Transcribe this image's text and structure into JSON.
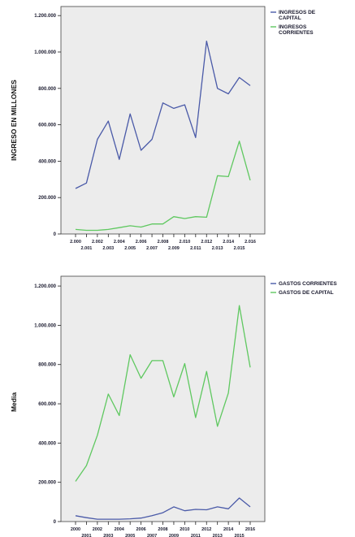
{
  "chart_data": [
    {
      "type": "line",
      "title": "",
      "xlabel": "",
      "ylabel": "INGRESO EN MILLONES",
      "ylim": [
        0,
        1250000
      ],
      "yticks": [
        "0",
        "200.000",
        "400.000",
        "600.000",
        "800.000",
        "1.000.000",
        "1.200.000"
      ],
      "x": [
        2000,
        2001,
        2002,
        2003,
        2004,
        2005,
        2006,
        2007,
        2008,
        2009,
        2010,
        2011,
        2012,
        2013,
        2014,
        2015,
        2016
      ],
      "xticks": [
        "2.000",
        "2.001",
        "2.002",
        "2.003",
        "2.004",
        "2.005",
        "2.006",
        "2.007",
        "2.008",
        "2.009",
        "2.010",
        "2.011",
        "2.012",
        "2.013",
        "2.014",
        "2.015",
        "2.016"
      ],
      "legend_position": "outside-top-right",
      "series": [
        {
          "name_lines": [
            "INGRESOS DE",
            "CAPITAL"
          ],
          "color": "#4a5aa8",
          "values": [
            250000,
            280000,
            520000,
            620000,
            410000,
            660000,
            460000,
            520000,
            720000,
            690000,
            710000,
            530000,
            1060000,
            800000,
            770000,
            860000,
            815000
          ]
        },
        {
          "name_lines": [
            "INGRESOS",
            "CORRIENTES"
          ],
          "color": "#5fc860",
          "values": [
            25000,
            20000,
            20000,
            25000,
            35000,
            45000,
            38000,
            55000,
            55000,
            95000,
            85000,
            95000,
            92000,
            320000,
            315000,
            510000,
            295000
          ]
        }
      ]
    },
    {
      "type": "line",
      "title": "",
      "xlabel": "",
      "ylabel": "Media",
      "ylim": [
        0,
        1250000
      ],
      "yticks": [
        "0",
        "200.000",
        "400.000",
        "600.000",
        "800.000",
        "1.000.000",
        "1.200.000"
      ],
      "x": [
        2000,
        2001,
        2002,
        2003,
        2004,
        2005,
        2006,
        2007,
        2008,
        2009,
        2010,
        2011,
        2012,
        2013,
        2014,
        2015,
        2016
      ],
      "xticks": [
        "2000",
        "2001",
        "2002",
        "2003",
        "2004",
        "2005",
        "2006",
        "2007",
        "2008",
        "2009",
        "2010",
        "2011",
        "2012",
        "2013",
        "2014",
        "2015",
        "2016"
      ],
      "legend_position": "outside-top-right",
      "series": [
        {
          "name_lines": [
            "GASTOS CORRIENTES"
          ],
          "color": "#4a5aa8",
          "values": [
            30000,
            20000,
            12000,
            12000,
            12000,
            14000,
            18000,
            30000,
            45000,
            75000,
            55000,
            62000,
            60000,
            75000,
            65000,
            120000,
            75000
          ]
        },
        {
          "name_lines": [
            "GASTOS DE CAPITAL"
          ],
          "color": "#5fc860",
          "values": [
            205000,
            285000,
            440000,
            650000,
            540000,
            850000,
            730000,
            820000,
            820000,
            635000,
            805000,
            530000,
            765000,
            485000,
            655000,
            1100000,
            785000
          ]
        }
      ]
    }
  ]
}
